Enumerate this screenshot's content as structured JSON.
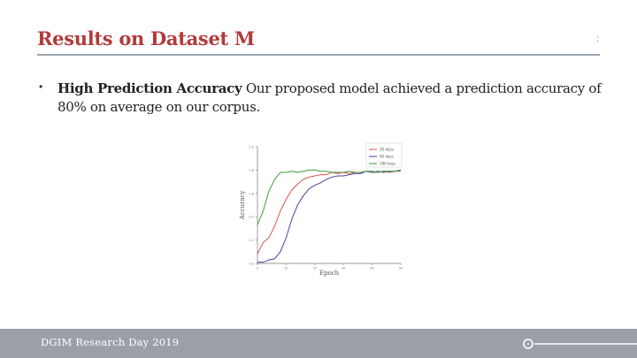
{
  "slide": {
    "title": "Results on Dataset M",
    "slide_number": ":",
    "footer": "DGIM Research Day 2019"
  },
  "bullet": {
    "bold": "High Prediction Accuracy",
    "text": " Our proposed model achieved a prediction accuracy of 80% on average on our corpus."
  },
  "chart_data": {
    "type": "line",
    "xlabel": "Epoch",
    "ylabel": "Accuracy",
    "xlim": [
      0,
      50
    ],
    "ylim": [
      0,
      1.0
    ],
    "x_ticks": [
      "0",
      "10",
      "20",
      "30",
      "40",
      "50"
    ],
    "y_ticks": [
      "0.0",
      "0.2",
      "0.4",
      "0.6",
      "0.8",
      "1.0"
    ],
    "legend_position": "top-right",
    "grid": false,
    "series": [
      {
        "name": "30 days",
        "color": "#d9534f",
        "x": [
          0,
          2,
          4,
          6,
          8,
          10,
          12,
          14,
          16,
          18,
          20,
          22,
          24,
          26,
          28,
          30,
          32,
          34,
          36,
          38,
          40,
          42,
          44,
          46,
          48,
          50
        ],
        "values": [
          0.08,
          0.18,
          0.22,
          0.32,
          0.45,
          0.55,
          0.63,
          0.68,
          0.72,
          0.74,
          0.75,
          0.76,
          0.76,
          0.78,
          0.77,
          0.78,
          0.77,
          0.78,
          0.78,
          0.79,
          0.78,
          0.78,
          0.79,
          0.78,
          0.79,
          0.79
        ]
      },
      {
        "name": "90 days",
        "color": "#4a3f9f",
        "x": [
          0,
          2,
          4,
          6,
          8,
          10,
          12,
          14,
          16,
          18,
          20,
          22,
          24,
          26,
          28,
          30,
          32,
          34,
          36,
          38,
          40,
          42,
          44,
          46,
          48,
          50
        ],
        "values": [
          0.01,
          0.01,
          0.03,
          0.04,
          0.1,
          0.22,
          0.38,
          0.5,
          0.58,
          0.64,
          0.67,
          0.69,
          0.72,
          0.74,
          0.75,
          0.75,
          0.76,
          0.77,
          0.77,
          0.79,
          0.78,
          0.79,
          0.78,
          0.79,
          0.79,
          0.8
        ]
      },
      {
        "name": "180 days",
        "color": "#3d9a3d",
        "x": [
          0,
          2,
          4,
          6,
          8,
          10,
          12,
          14,
          16,
          18,
          20,
          22,
          24,
          26,
          28,
          30,
          32,
          34,
          36,
          38,
          40,
          42,
          44,
          46,
          48,
          50
        ],
        "values": [
          0.33,
          0.45,
          0.62,
          0.72,
          0.78,
          0.78,
          0.79,
          0.78,
          0.79,
          0.8,
          0.8,
          0.79,
          0.79,
          0.78,
          0.78,
          0.78,
          0.79,
          0.78,
          0.78,
          0.79,
          0.79,
          0.78,
          0.79,
          0.79,
          0.79,
          0.8
        ]
      }
    ]
  }
}
